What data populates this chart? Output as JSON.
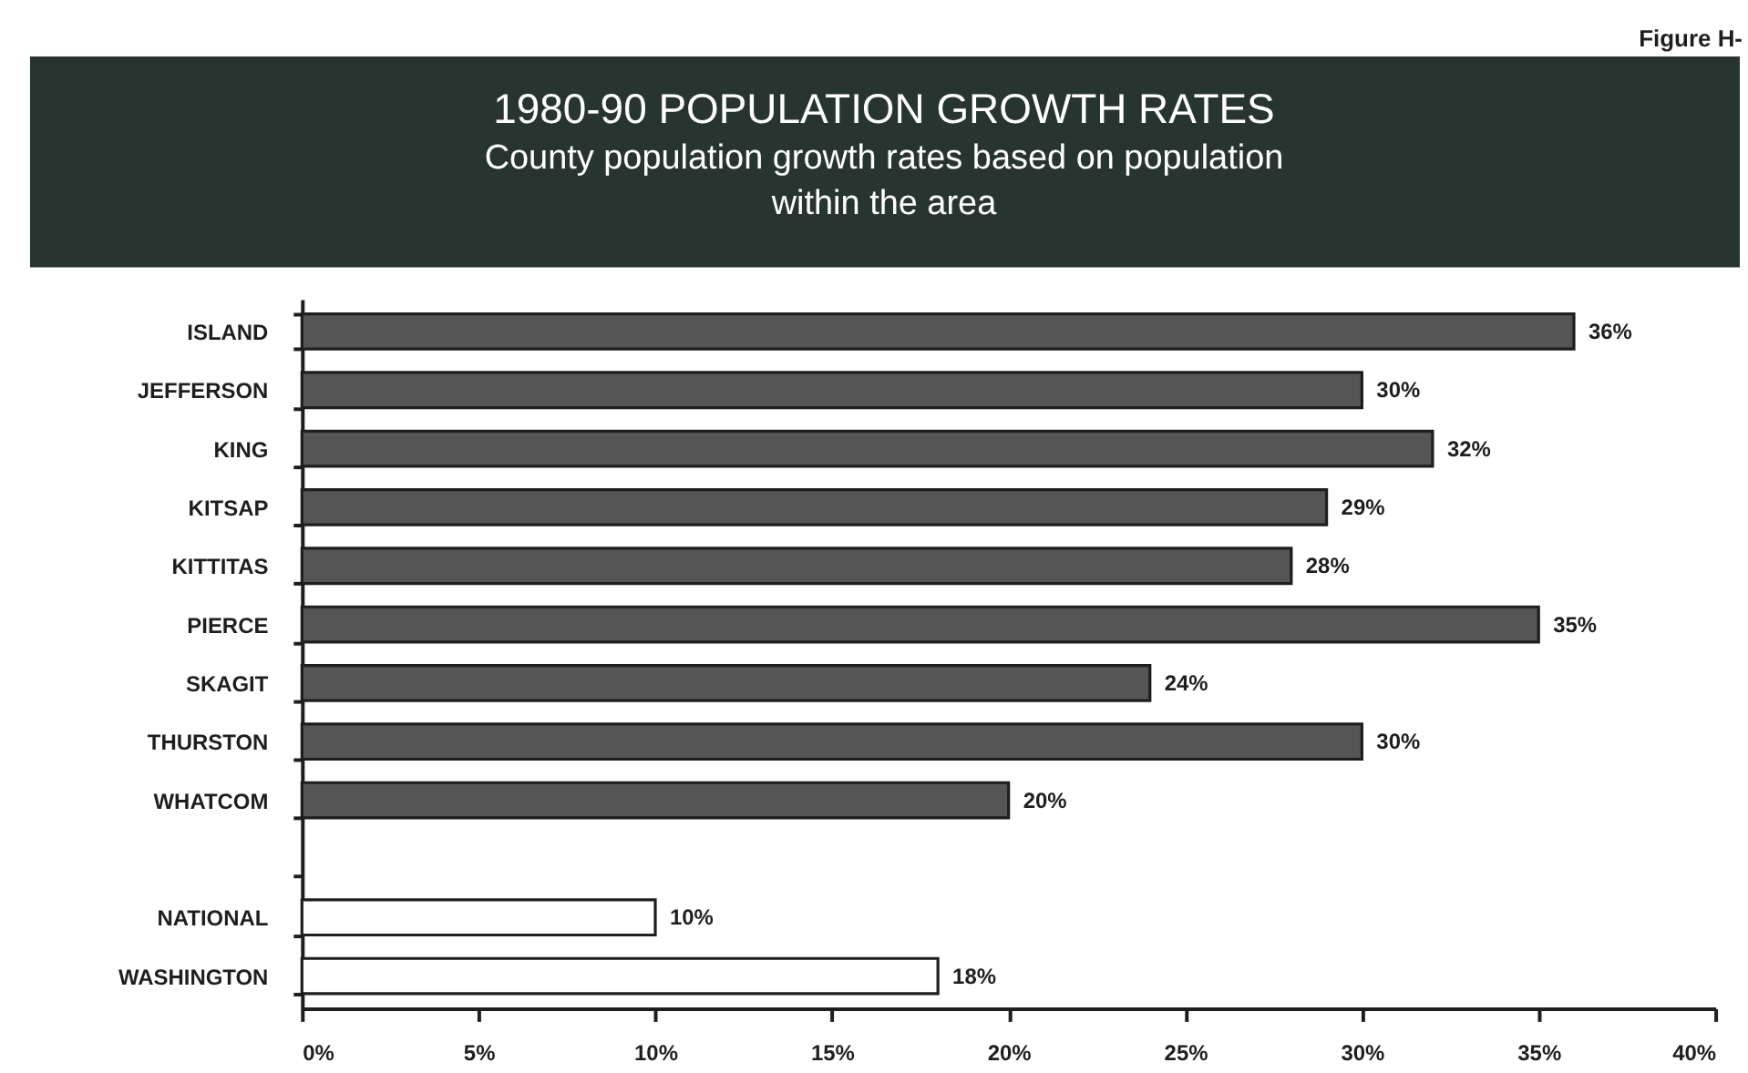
{
  "chart_data": {
    "type": "bar",
    "orientation": "horizontal",
    "title": "1980-90 POPULATION GROWTH RATES",
    "subtitle": "County population growth rates based on population within the area",
    "annotations": [
      "Figure H-"
    ],
    "categories": [
      "ISLAND",
      "JEFFERSON",
      "KING",
      "KITSAP",
      "KITTITAS",
      "PIERCE",
      "SKAGIT",
      "THURSTON",
      "WHATCOM",
      null,
      "NATIONAL",
      "WASHINGTON"
    ],
    "values": [
      36,
      30,
      32,
      29,
      28,
      35,
      24,
      30,
      20,
      null,
      10,
      18
    ],
    "colors": [
      "#555555",
      "#555555",
      "#555555",
      "#555555",
      "#555555",
      "#555555",
      "#555555",
      "#555555",
      "#555555",
      null,
      "#ffffff",
      "#ffffff"
    ],
    "value_labels": [
      "36%",
      "30%",
      "32%",
      "29%",
      "28%",
      "35%",
      "24%",
      "30%",
      "20%",
      null,
      "10%",
      "18%"
    ],
    "xlim": [
      0,
      40
    ],
    "xticks": [
      {
        "value": 0,
        "label": "0%"
      },
      {
        "value": 5,
        "label": "5%"
      },
      {
        "value": 10,
        "label": "10%"
      },
      {
        "value": 15,
        "label": "15%"
      },
      {
        "value": 20,
        "label": "20%"
      },
      {
        "value": 25,
        "label": "25%"
      },
      {
        "value": 30,
        "label": "30%"
      },
      {
        "value": 35,
        "label": "35%"
      },
      {
        "value": 40,
        "label": "40%"
      }
    ]
  }
}
